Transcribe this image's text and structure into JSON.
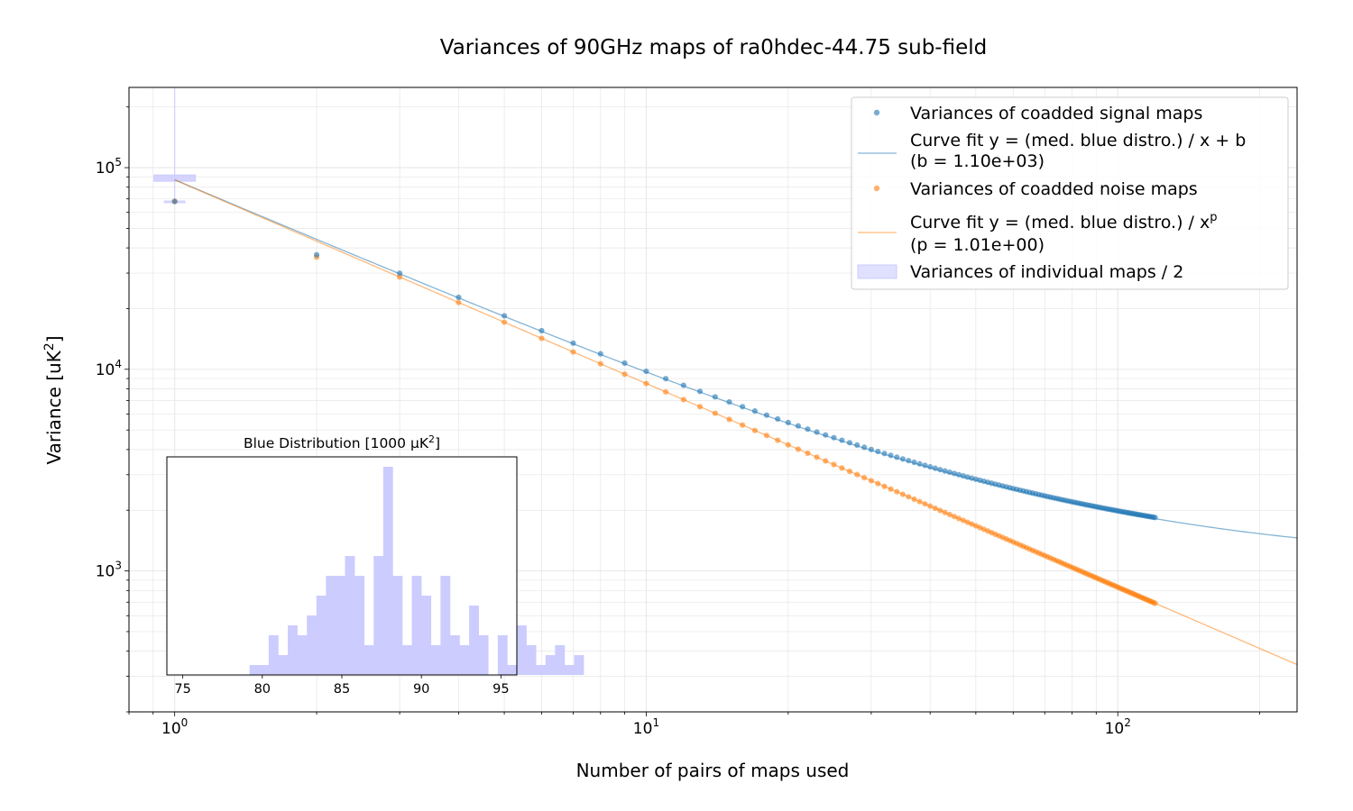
{
  "chart_data": {
    "type": "scatter",
    "title": "Variances of 90GHz maps of ra0hdec-44.75 sub-field",
    "xlabel": "Number of pairs of maps used",
    "ylabel": "Variance [uK²]",
    "ylabel_base": "Variance [uK",
    "ylabel_sup": "2",
    "ylabel_end": "]",
    "xscale": "log",
    "yscale": "log",
    "xlim": [
      0.8,
      240
    ],
    "ylim": [
      200,
      250000
    ],
    "grid": true,
    "x_ticks": [
      {
        "base": "10",
        "exp": "0",
        "value": 1
      },
      {
        "base": "10",
        "exp": "1",
        "value": 10
      },
      {
        "base": "10",
        "exp": "2",
        "value": 100
      }
    ],
    "y_ticks": [
      {
        "base": "10",
        "exp": "3",
        "value": 1000
      },
      {
        "base": "10",
        "exp": "4",
        "value": 10000
      },
      {
        "base": "10",
        "exp": "5",
        "value": 100000
      }
    ],
    "legend_position": "top-right",
    "series": [
      {
        "name": "Variances of coadded signal maps",
        "kind": "scatter",
        "color": "#1f77b4",
        "x_range": [
          1,
          120
        ],
        "model": "a/x+b",
        "a": 86500,
        "b": 1120,
        "highlight_points": [
          {
            "x": 1,
            "y": 68000
          },
          {
            "x": 2,
            "y": 37000
          }
        ]
      },
      {
        "name": "Variances of coadded noise maps",
        "kind": "scatter",
        "color": "#ff7f0e",
        "x_range": [
          1,
          120
        ],
        "model": "a/x^p",
        "a": 87000,
        "p": 1.01,
        "highlight_points": [
          {
            "x": 1,
            "y": 68000
          },
          {
            "x": 2,
            "y": 36000
          }
        ]
      },
      {
        "name": "Curve fit y = (med. blue distro.) / x + b",
        "name_line2": "(b = 1.10e+03)",
        "kind": "line",
        "color": "#1f77b4",
        "x_range": [
          1,
          240
        ],
        "model": "a/x+b",
        "a": 86000,
        "b": 1100
      },
      {
        "name": "Curve fit y = (med. blue distro.) / x",
        "name_sup": "p",
        "name_line2": "(p = 1.01e+00)",
        "kind": "line",
        "color": "#ff7f0e",
        "x_range": [
          1,
          240
        ],
        "model": "a/x^p",
        "a": 87000,
        "p": 1.01
      },
      {
        "name": "Variances of individual maps / 2",
        "kind": "histogram-band",
        "color": "#ccccff",
        "x": 1,
        "y_range": [
          68000,
          92000
        ]
      }
    ],
    "inset": {
      "type": "histogram",
      "title": "Blue Distribution  [1000 μK",
      "title_sup": "2",
      "title_end": "]",
      "xlim": [
        74,
        96
      ],
      "x_ticks": [
        "75",
        "80",
        "85",
        "90",
        "95"
      ],
      "x_tick_values": [
        75,
        80,
        85,
        90,
        95
      ],
      "ylim": [
        0,
        22
      ],
      "bin_start": 79.2,
      "bin_width": 0.6,
      "counts": [
        1,
        1,
        4,
        2,
        5,
        4,
        6,
        8,
        10,
        10,
        12,
        10,
        3,
        12,
        21,
        10,
        3,
        10,
        8,
        3,
        10,
        4,
        3,
        7,
        4,
        0,
        4,
        1,
        5,
        3,
        1,
        2,
        3,
        1,
        2
      ],
      "color": "#ccccff"
    }
  }
}
